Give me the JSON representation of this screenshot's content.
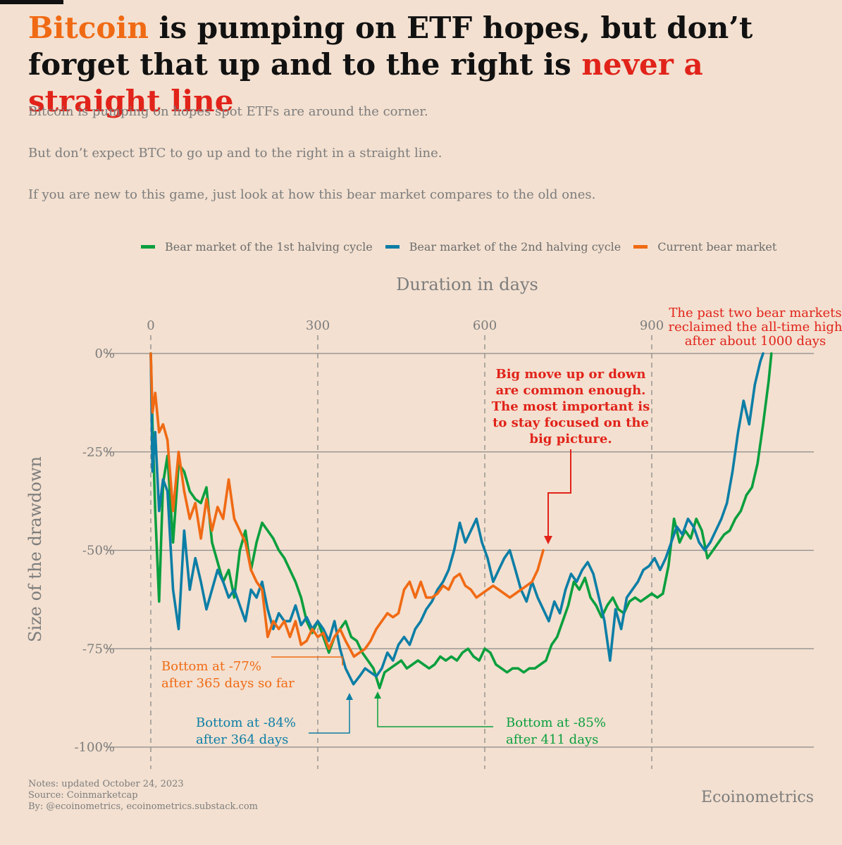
{
  "title": {
    "part1": "Bitcoin",
    "part2": " is pumping on ETF hopes, but don’t forget that up and to the right is ",
    "part3": "never a straight line"
  },
  "subtitle": [
    "Bitcoin is pumping on hopes spot ETFs are around the corner.",
    "But don’t expect BTC to go up and to the right in a straight line.",
    "If you are new to this game, just look at how this bear market compares to the old ones."
  ],
  "notes": {
    "line1": "Notes: updated October 24, 2023",
    "line2": "Source: Coinmarketcap",
    "line3": "By: @ecoinometrics, ecoinometrics.substack.com"
  },
  "brand": "Ecoinometrics",
  "colors": {
    "green": "#0a9f3e",
    "blue": "#0c7ea6",
    "orange": "#f06a14",
    "red": "#e1231a",
    "background": "#f3e0d0"
  },
  "chart_data": {
    "type": "line",
    "xlabel": "Duration in days",
    "ylabel": "Size of the drawdown",
    "xlim": [
      0,
      1000
    ],
    "ylim": [
      -100,
      0
    ],
    "x_ticks": [
      0,
      300,
      600,
      900
    ],
    "x_tick_labels": [
      "0",
      "300",
      "600",
      "900"
    ],
    "y_ticks": [
      0,
      -25,
      -50,
      -75,
      -100
    ],
    "y_tick_labels": [
      "0%",
      "-25%",
      "-50%",
      "-75%",
      "-100%"
    ],
    "legend_position": "top",
    "series": [
      {
        "name": "Bear market of the 1st halving cycle",
        "color": "#0a9f3e",
        "x": [
          0,
          3,
          8,
          15,
          22,
          30,
          40,
          50,
          60,
          70,
          80,
          90,
          100,
          110,
          120,
          130,
          140,
          150,
          160,
          170,
          180,
          190,
          200,
          210,
          220,
          230,
          240,
          250,
          260,
          270,
          280,
          290,
          300,
          310,
          320,
          330,
          340,
          350,
          360,
          370,
          380,
          390,
          400,
          411,
          420,
          430,
          440,
          450,
          460,
          470,
          480,
          490,
          500,
          510,
          520,
          530,
          540,
          550,
          560,
          570,
          580,
          590,
          600,
          610,
          620,
          630,
          640,
          650,
          660,
          670,
          680,
          690,
          700,
          710,
          720,
          730,
          740,
          750,
          760,
          770,
          780,
          790,
          800,
          810,
          820,
          830,
          840,
          850,
          860,
          870,
          880,
          890,
          900,
          910,
          920,
          930,
          940,
          950,
          960,
          970,
          980,
          990,
          1000,
          1010,
          1020,
          1030,
          1040,
          1050,
          1060,
          1070,
          1080,
          1090,
          1100,
          1110,
          1115
        ],
        "y": [
          0,
          -18,
          -40,
          -63,
          -33,
          -26,
          -48,
          -28,
          -30,
          -35,
          -37,
          -38,
          -34,
          -48,
          -53,
          -58,
          -55,
          -62,
          -50,
          -45,
          -55,
          -48,
          -43,
          -45,
          -47,
          -50,
          -52,
          -55,
          -58,
          -62,
          -68,
          -71,
          -68,
          -72,
          -76,
          -72,
          -70,
          -68,
          -72,
          -73,
          -76,
          -78,
          -80,
          -85,
          -81,
          -80,
          -79,
          -78,
          -80,
          -79,
          -78,
          -79,
          -80,
          -79,
          -77,
          -78,
          -77,
          -78,
          -76,
          -75,
          -77,
          -78,
          -75,
          -76,
          -79,
          -80,
          -81,
          -80,
          -80,
          -81,
          -80,
          -80,
          -79,
          -78,
          -74,
          -72,
          -68,
          -64,
          -58,
          -60,
          -57,
          -62,
          -64,
          -67,
          -64,
          -62,
          -65,
          -66,
          -63,
          -62,
          -63,
          -62,
          -61,
          -62,
          -61,
          -54,
          -42,
          -48,
          -45,
          -47,
          -42,
          -45,
          -52,
          -50,
          -48,
          -46,
          -45,
          -42,
          -40,
          -36,
          -34,
          -28,
          -18,
          -7,
          0
        ]
      },
      {
        "name": "Bear market of the 2nd halving cycle",
        "color": "#0c7ea6",
        "x": [
          0,
          3,
          8,
          15,
          22,
          30,
          40,
          50,
          60,
          70,
          80,
          90,
          100,
          110,
          120,
          130,
          140,
          150,
          160,
          170,
          180,
          190,
          200,
          210,
          220,
          230,
          240,
          250,
          260,
          270,
          280,
          290,
          300,
          310,
          320,
          330,
          340,
          350,
          364,
          375,
          385,
          395,
          405,
          415,
          425,
          435,
          445,
          455,
          465,
          475,
          485,
          495,
          505,
          515,
          525,
          535,
          545,
          555,
          565,
          575,
          585,
          595,
          605,
          615,
          625,
          635,
          645,
          655,
          665,
          675,
          685,
          695,
          705,
          715,
          725,
          735,
          745,
          755,
          765,
          775,
          785,
          795,
          805,
          815,
          825,
          835,
          845,
          855,
          865,
          875,
          885,
          895,
          905,
          915,
          925,
          935,
          945,
          955,
          965,
          975,
          985,
          995,
          1005,
          1015,
          1025,
          1035,
          1045,
          1055,
          1065,
          1075,
          1085,
          1095,
          1100
        ],
        "y": [
          0,
          -30,
          -20,
          -40,
          -32,
          -35,
          -60,
          -70,
          -45,
          -60,
          -52,
          -58,
          -65,
          -60,
          -55,
          -58,
          -62,
          -60,
          -64,
          -68,
          -60,
          -62,
          -58,
          -65,
          -70,
          -66,
          -68,
          -68,
          -64,
          -69,
          -67,
          -70,
          -68,
          -70,
          -73,
          -68,
          -75,
          -80,
          -84,
          -82,
          -80,
          -81,
          -82,
          -80,
          -76,
          -78,
          -74,
          -72,
          -74,
          -70,
          -68,
          -65,
          -63,
          -60,
          -58,
          -55,
          -50,
          -43,
          -48,
          -45,
          -42,
          -48,
          -52,
          -58,
          -55,
          -52,
          -50,
          -55,
          -60,
          -63,
          -58,
          -62,
          -65,
          -68,
          -63,
          -66,
          -60,
          -56,
          -58,
          -55,
          -53,
          -56,
          -62,
          -68,
          -78,
          -65,
          -70,
          -62,
          -60,
          -58,
          -55,
          -54,
          -52,
          -55,
          -52,
          -48,
          -44,
          -46,
          -42,
          -44,
          -48,
          -50,
          -48,
          -45,
          -42,
          -38,
          -30,
          -20,
          -12,
          -18,
          -8,
          -2,
          0
        ]
      },
      {
        "name": "Current bear market",
        "color": "#f06a14",
        "x": [
          0,
          3,
          8,
          15,
          22,
          30,
          40,
          50,
          60,
          70,
          80,
          90,
          100,
          110,
          120,
          130,
          140,
          150,
          160,
          170,
          180,
          190,
          200,
          210,
          220,
          230,
          240,
          250,
          260,
          270,
          280,
          290,
          300,
          310,
          320,
          330,
          340,
          350,
          365,
          375,
          385,
          395,
          405,
          415,
          425,
          435,
          445,
          455,
          465,
          475,
          485,
          495,
          505,
          515,
          525,
          535,
          545,
          555,
          565,
          575,
          585,
          595,
          605,
          615,
          625,
          635,
          645,
          655,
          665,
          675,
          685,
          695,
          705
        ],
        "y": [
          0,
          -15,
          -10,
          -20,
          -18,
          -22,
          -40,
          -25,
          -35,
          -42,
          -38,
          -47,
          -37,
          -45,
          -39,
          -42,
          -32,
          -42,
          -45,
          -48,
          -55,
          -58,
          -60,
          -72,
          -68,
          -70,
          -68,
          -72,
          -68,
          -74,
          -73,
          -70,
          -72,
          -71,
          -75,
          -72,
          -70,
          -73,
          -77,
          -76,
          -75,
          -73,
          -70,
          -68,
          -66,
          -67,
          -66,
          -60,
          -58,
          -62,
          -58,
          -62,
          -62,
          -61,
          -59,
          -60,
          -57,
          -56,
          -59,
          -60,
          -62,
          -61,
          -60,
          -59,
          -60,
          -61,
          -62,
          -61,
          -60,
          -59,
          -58,
          -55,
          -50
        ]
      }
    ],
    "annotations": {
      "orange_bottom": [
        "Bottom at -77%",
        "after 365 days so far"
      ],
      "blue_bottom": [
        "Bottom at -84%",
        "after 364 days"
      ],
      "green_bottom": [
        "Bottom at -85%",
        "after 411 days"
      ],
      "big_move": [
        "Big move up or down",
        "are common enough.",
        "The most important is",
        "to stay focused on the",
        "big picture."
      ],
      "ath_note": [
        "The past two bear markets",
        "reclaimed the all-time high",
        "after about 1000 days"
      ]
    }
  }
}
